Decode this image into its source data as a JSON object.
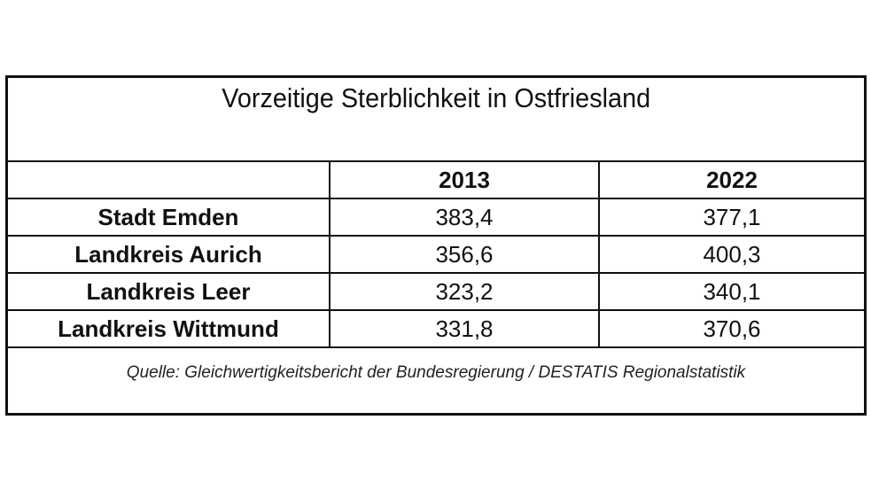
{
  "title": "Vorzeitige Sterblichkeit in Ostfriesland",
  "table": {
    "columns": [
      "",
      "2013",
      "2022"
    ],
    "rows": [
      {
        "label": "Stadt Emden",
        "values": [
          "383,4",
          "377,1"
        ]
      },
      {
        "label": "Landkreis Aurich",
        "values": [
          "356,6",
          "400,3"
        ]
      },
      {
        "label": "Landkreis Leer",
        "values": [
          "323,2",
          "340,1"
        ]
      },
      {
        "label": "Landkreis Wittmund",
        "values": [
          "331,8",
          "370,6"
        ]
      }
    ]
  },
  "source": "Quelle: Gleichwertigkeitsbericht der Bundesregierung / DESTATIS Regionalstatistik"
}
